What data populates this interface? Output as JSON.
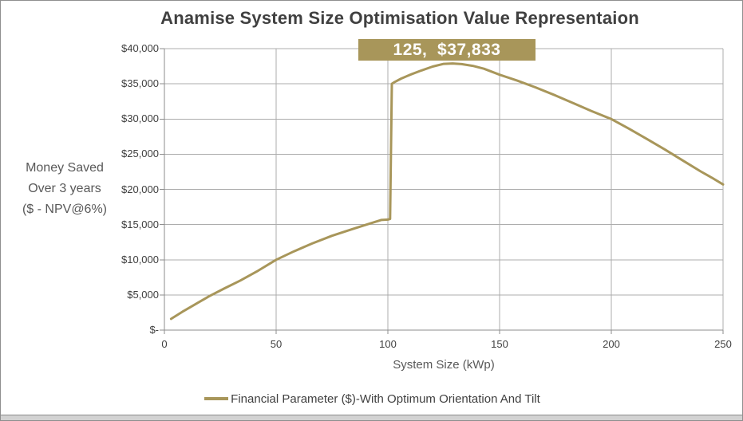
{
  "chart_data": {
    "type": "line",
    "title": "Anamise System Size Optimisation Value Representaion",
    "xlabel": "System Size (kWp)",
    "ylabel": "Money Saved Over 3 years ($ - NPV@6%)",
    "ylabel_lines": [
      "Money Saved",
      "Over 3 years",
      "($ - NPV@6%)"
    ],
    "xlim": [
      0,
      250
    ],
    "ylim": [
      0,
      40000
    ],
    "grid": true,
    "legend_position": "bottom",
    "x_ticks": {
      "values": [
        0,
        50,
        100,
        150,
        200,
        250
      ],
      "labels": [
        "0",
        "50",
        "100",
        "150",
        "200",
        "250"
      ]
    },
    "y_ticks": {
      "values": [
        0,
        5000,
        10000,
        15000,
        20000,
        25000,
        30000,
        35000,
        40000
      ],
      "labels": [
        "$-",
        "$5,000",
        "$10,000",
        "$15,000",
        "$20,000",
        "$25,000",
        "$30,000",
        "$35,000",
        "$40,000"
      ]
    },
    "annotation": {
      "x": 125,
      "y": 37833,
      "text": "125,  $37,833"
    },
    "series": [
      {
        "name": "Financial Parameter ($)-With Optimum Orientation And Tilt",
        "color": "#A8965A",
        "points": [
          [
            3,
            1600
          ],
          [
            8,
            2600
          ],
          [
            14,
            3700
          ],
          [
            20,
            4800
          ],
          [
            27,
            5950
          ],
          [
            34,
            7050
          ],
          [
            42,
            8450
          ],
          [
            50,
            10000
          ],
          [
            58,
            11200
          ],
          [
            66,
            12300
          ],
          [
            75,
            13400
          ],
          [
            84,
            14350
          ],
          [
            92,
            15150
          ],
          [
            97,
            15650
          ],
          [
            100,
            15700
          ],
          [
            101,
            15800
          ],
          [
            101.8,
            35000
          ],
          [
            103,
            35250
          ],
          [
            106,
            35750
          ],
          [
            110,
            36300
          ],
          [
            115,
            36900
          ],
          [
            120,
            37450
          ],
          [
            125,
            37833
          ],
          [
            129,
            37890
          ],
          [
            133,
            37800
          ],
          [
            138,
            37550
          ],
          [
            143,
            37150
          ],
          [
            150,
            36300
          ],
          [
            158,
            35450
          ],
          [
            166,
            34500
          ],
          [
            175,
            33350
          ],
          [
            183,
            32250
          ],
          [
            191,
            31150
          ],
          [
            200,
            30000
          ],
          [
            208,
            28600
          ],
          [
            216,
            27150
          ],
          [
            224,
            25650
          ],
          [
            232,
            24100
          ],
          [
            240,
            22550
          ],
          [
            245,
            21650
          ],
          [
            250,
            20700
          ]
        ]
      }
    ]
  },
  "colors": {
    "series": "#A8965A",
    "annotation_bg": "#A8965A",
    "annotation_text": "#FFFFFF",
    "title": "#404040",
    "tick_label": "#404040",
    "axis_title": "#595959",
    "legend_text": "#3F3F3F",
    "gridline": "#ACACAC",
    "axis_line": "#8E8E8E",
    "bottom_strip": "#D2D2D2"
  }
}
